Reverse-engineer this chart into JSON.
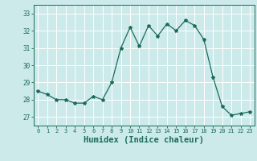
{
  "x": [
    0,
    1,
    2,
    3,
    4,
    5,
    6,
    7,
    8,
    9,
    10,
    11,
    12,
    13,
    14,
    15,
    16,
    17,
    18,
    19,
    20,
    21,
    22,
    23
  ],
  "y": [
    28.5,
    28.3,
    28.0,
    28.0,
    27.8,
    27.8,
    28.2,
    28.0,
    29.0,
    31.0,
    32.2,
    31.1,
    32.3,
    31.7,
    32.4,
    32.0,
    32.6,
    32.3,
    31.5,
    29.3,
    27.6,
    27.1,
    27.2,
    27.3
  ],
  "line_color": "#1a6b5a",
  "marker": "*",
  "marker_size": 3,
  "bg_color": "#cceaea",
  "grid_color": "#ffffff",
  "xlabel": "Humidex (Indice chaleur)",
  "xlabel_fontsize": 7.5,
  "tick_color": "#1a6b5a",
  "ylim": [
    26.5,
    33.5
  ],
  "xlim": [
    -0.5,
    23.5
  ],
  "yticks": [
    27,
    28,
    29,
    30,
    31,
    32,
    33
  ],
  "xticks": [
    0,
    1,
    2,
    3,
    4,
    5,
    6,
    7,
    8,
    9,
    10,
    11,
    12,
    13,
    14,
    15,
    16,
    17,
    18,
    19,
    20,
    21,
    22,
    23
  ]
}
